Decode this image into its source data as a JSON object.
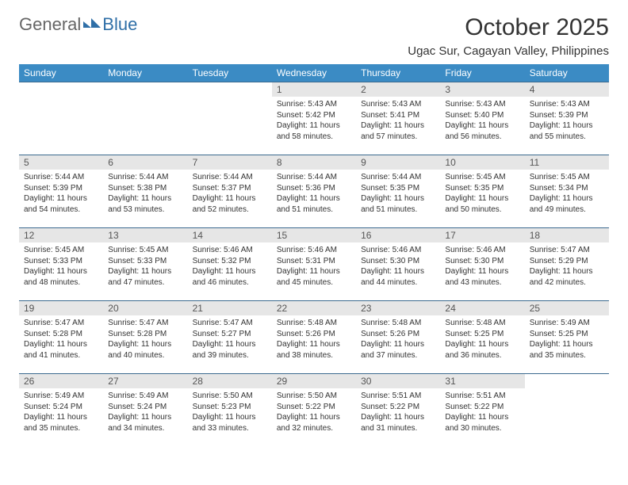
{
  "colors": {
    "header_bg": "#3b8bc4",
    "header_text": "#ffffff",
    "daynum_bg": "#e6e6e6",
    "row_border": "#3b6a8f",
    "logo_gray": "#666666",
    "logo_blue": "#2f6fa7"
  },
  "logo": {
    "text_left": "General",
    "text_right": "Blue"
  },
  "title": "October 2025",
  "location": "Ugac Sur, Cagayan Valley, Philippines",
  "day_headers": [
    "Sunday",
    "Monday",
    "Tuesday",
    "Wednesday",
    "Thursday",
    "Friday",
    "Saturday"
  ],
  "weeks": [
    [
      {
        "day": "",
        "lines": []
      },
      {
        "day": "",
        "lines": []
      },
      {
        "day": "",
        "lines": []
      },
      {
        "day": "1",
        "lines": [
          "Sunrise: 5:43 AM",
          "Sunset: 5:42 PM",
          "Daylight: 11 hours and 58 minutes."
        ]
      },
      {
        "day": "2",
        "lines": [
          "Sunrise: 5:43 AM",
          "Sunset: 5:41 PM",
          "Daylight: 11 hours and 57 minutes."
        ]
      },
      {
        "day": "3",
        "lines": [
          "Sunrise: 5:43 AM",
          "Sunset: 5:40 PM",
          "Daylight: 11 hours and 56 minutes."
        ]
      },
      {
        "day": "4",
        "lines": [
          "Sunrise: 5:43 AM",
          "Sunset: 5:39 PM",
          "Daylight: 11 hours and 55 minutes."
        ]
      }
    ],
    [
      {
        "day": "5",
        "lines": [
          "Sunrise: 5:44 AM",
          "Sunset: 5:39 PM",
          "Daylight: 11 hours and 54 minutes."
        ]
      },
      {
        "day": "6",
        "lines": [
          "Sunrise: 5:44 AM",
          "Sunset: 5:38 PM",
          "Daylight: 11 hours and 53 minutes."
        ]
      },
      {
        "day": "7",
        "lines": [
          "Sunrise: 5:44 AM",
          "Sunset: 5:37 PM",
          "Daylight: 11 hours and 52 minutes."
        ]
      },
      {
        "day": "8",
        "lines": [
          "Sunrise: 5:44 AM",
          "Sunset: 5:36 PM",
          "Daylight: 11 hours and 51 minutes."
        ]
      },
      {
        "day": "9",
        "lines": [
          "Sunrise: 5:44 AM",
          "Sunset: 5:35 PM",
          "Daylight: 11 hours and 51 minutes."
        ]
      },
      {
        "day": "10",
        "lines": [
          "Sunrise: 5:45 AM",
          "Sunset: 5:35 PM",
          "Daylight: 11 hours and 50 minutes."
        ]
      },
      {
        "day": "11",
        "lines": [
          "Sunrise: 5:45 AM",
          "Sunset: 5:34 PM",
          "Daylight: 11 hours and 49 minutes."
        ]
      }
    ],
    [
      {
        "day": "12",
        "lines": [
          "Sunrise: 5:45 AM",
          "Sunset: 5:33 PM",
          "Daylight: 11 hours and 48 minutes."
        ]
      },
      {
        "day": "13",
        "lines": [
          "Sunrise: 5:45 AM",
          "Sunset: 5:33 PM",
          "Daylight: 11 hours and 47 minutes."
        ]
      },
      {
        "day": "14",
        "lines": [
          "Sunrise: 5:46 AM",
          "Sunset: 5:32 PM",
          "Daylight: 11 hours and 46 minutes."
        ]
      },
      {
        "day": "15",
        "lines": [
          "Sunrise: 5:46 AM",
          "Sunset: 5:31 PM",
          "Daylight: 11 hours and 45 minutes."
        ]
      },
      {
        "day": "16",
        "lines": [
          "Sunrise: 5:46 AM",
          "Sunset: 5:30 PM",
          "Daylight: 11 hours and 44 minutes."
        ]
      },
      {
        "day": "17",
        "lines": [
          "Sunrise: 5:46 AM",
          "Sunset: 5:30 PM",
          "Daylight: 11 hours and 43 minutes."
        ]
      },
      {
        "day": "18",
        "lines": [
          "Sunrise: 5:47 AM",
          "Sunset: 5:29 PM",
          "Daylight: 11 hours and 42 minutes."
        ]
      }
    ],
    [
      {
        "day": "19",
        "lines": [
          "Sunrise: 5:47 AM",
          "Sunset: 5:28 PM",
          "Daylight: 11 hours and 41 minutes."
        ]
      },
      {
        "day": "20",
        "lines": [
          "Sunrise: 5:47 AM",
          "Sunset: 5:28 PM",
          "Daylight: 11 hours and 40 minutes."
        ]
      },
      {
        "day": "21",
        "lines": [
          "Sunrise: 5:47 AM",
          "Sunset: 5:27 PM",
          "Daylight: 11 hours and 39 minutes."
        ]
      },
      {
        "day": "22",
        "lines": [
          "Sunrise: 5:48 AM",
          "Sunset: 5:26 PM",
          "Daylight: 11 hours and 38 minutes."
        ]
      },
      {
        "day": "23",
        "lines": [
          "Sunrise: 5:48 AM",
          "Sunset: 5:26 PM",
          "Daylight: 11 hours and 37 minutes."
        ]
      },
      {
        "day": "24",
        "lines": [
          "Sunrise: 5:48 AM",
          "Sunset: 5:25 PM",
          "Daylight: 11 hours and 36 minutes."
        ]
      },
      {
        "day": "25",
        "lines": [
          "Sunrise: 5:49 AM",
          "Sunset: 5:25 PM",
          "Daylight: 11 hours and 35 minutes."
        ]
      }
    ],
    [
      {
        "day": "26",
        "lines": [
          "Sunrise: 5:49 AM",
          "Sunset: 5:24 PM",
          "Daylight: 11 hours and 35 minutes."
        ]
      },
      {
        "day": "27",
        "lines": [
          "Sunrise: 5:49 AM",
          "Sunset: 5:24 PM",
          "Daylight: 11 hours and 34 minutes."
        ]
      },
      {
        "day": "28",
        "lines": [
          "Sunrise: 5:50 AM",
          "Sunset: 5:23 PM",
          "Daylight: 11 hours and 33 minutes."
        ]
      },
      {
        "day": "29",
        "lines": [
          "Sunrise: 5:50 AM",
          "Sunset: 5:22 PM",
          "Daylight: 11 hours and 32 minutes."
        ]
      },
      {
        "day": "30",
        "lines": [
          "Sunrise: 5:51 AM",
          "Sunset: 5:22 PM",
          "Daylight: 11 hours and 31 minutes."
        ]
      },
      {
        "day": "31",
        "lines": [
          "Sunrise: 5:51 AM",
          "Sunset: 5:22 PM",
          "Daylight: 11 hours and 30 minutes."
        ]
      },
      {
        "day": "",
        "lines": []
      }
    ]
  ]
}
